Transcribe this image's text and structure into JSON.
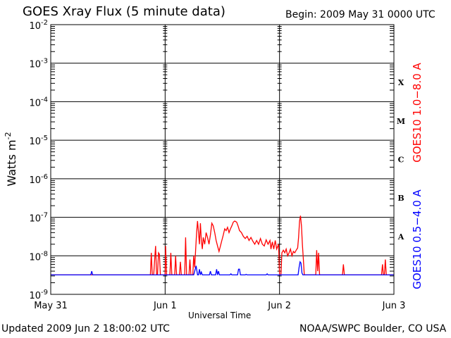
{
  "header": {
    "title": "GOES Xray Flux (5 minute data)",
    "begin": "Begin:  2009 May 31 0000 UTC"
  },
  "footer": {
    "updated": "Updated 2009 Jun  2 18:00:02 UTC",
    "credit": "NOAA/SWPC Boulder, CO USA"
  },
  "chart_data": {
    "type": "line",
    "title": "GOES Xray Flux (5 minute data)",
    "xlabel": "Universal Time",
    "ylabel": "Watts m-2",
    "yscale": "log",
    "ylim": [
      1e-09,
      0.01
    ],
    "xlim": [
      0,
      72
    ],
    "x_unit": "hours since 2009 May 31 0000 UTC",
    "x_ticks": [
      {
        "x": 0,
        "label": "May 31"
      },
      {
        "x": 24,
        "label": "Jun 1"
      },
      {
        "x": 48,
        "label": "Jun 2"
      },
      {
        "x": 72,
        "label": "Jun 3"
      }
    ],
    "y_ticks": [
      {
        "y": 1e-09,
        "base": "10",
        "exp": "-9"
      },
      {
        "y": 1e-08,
        "base": "10",
        "exp": "-8"
      },
      {
        "y": 1e-07,
        "base": "10",
        "exp": "-7"
      },
      {
        "y": 1e-06,
        "base": "10",
        "exp": "-6"
      },
      {
        "y": 1e-05,
        "base": "10",
        "exp": "-5"
      },
      {
        "y": 0.0001,
        "base": "10",
        "exp": "-4"
      },
      {
        "y": 0.001,
        "base": "10",
        "exp": "-3"
      },
      {
        "y": 0.01,
        "base": "10",
        "exp": "-2"
      }
    ],
    "flare_classes": [
      {
        "label": "A",
        "y_band": [
          1e-08,
          1e-07
        ]
      },
      {
        "label": "B",
        "y_band": [
          1e-07,
          1e-06
        ]
      },
      {
        "label": "C",
        "y_band": [
          1e-06,
          1e-05
        ]
      },
      {
        "label": "M",
        "y_band": [
          1e-05,
          0.0001
        ]
      },
      {
        "label": "X",
        "y_band": [
          0.0001,
          0.001
        ]
      }
    ],
    "grid": "horizontal lines at each decade",
    "series": [
      {
        "name": "GOES10 1.0-8.0 A",
        "color": "#ff0000",
        "points": [
          [
            0,
            3.2e-09
          ],
          [
            20.9,
            3.2e-09
          ],
          [
            21.1,
            1.2e-08
          ],
          [
            21.3,
            3.2e-09
          ],
          [
            21.6,
            3.2e-09
          ],
          [
            21.8,
            8e-09
          ],
          [
            22,
            1.8e-08
          ],
          [
            22.2,
            3.2e-09
          ],
          [
            22.4,
            3.2e-09
          ],
          [
            22.6,
            1.2e-08
          ],
          [
            22.8,
            1.1e-08
          ],
          [
            23,
            3.2e-09
          ],
          [
            24,
            3.2e-09
          ],
          [
            24.1,
            1.8e-08
          ],
          [
            24.3,
            3.2e-09
          ],
          [
            25,
            3.2e-09
          ],
          [
            25.2,
            1.2e-08
          ],
          [
            25.4,
            3.2e-09
          ],
          [
            26,
            3.2e-09
          ],
          [
            26.2,
            1e-08
          ],
          [
            26.4,
            3.2e-09
          ],
          [
            27,
            3.2e-09
          ],
          [
            27.2,
            7e-09
          ],
          [
            27.4,
            3.2e-09
          ],
          [
            28.1,
            3.2e-09
          ],
          [
            28.3,
            3e-08
          ],
          [
            28.5,
            3.2e-09
          ],
          [
            29,
            3.2e-09
          ],
          [
            29.2,
            8e-09
          ],
          [
            29.4,
            3.2e-09
          ],
          [
            29.8,
            3.2e-09
          ],
          [
            30,
            1e-08
          ],
          [
            30.2,
            5e-09
          ],
          [
            30.4,
            1.4e-08
          ],
          [
            30.6,
            4e-08
          ],
          [
            30.8,
            8e-08
          ],
          [
            31,
            4e-08
          ],
          [
            31.2,
            2e-08
          ],
          [
            31.4,
            7e-08
          ],
          [
            31.6,
            2.5e-08
          ],
          [
            31.8,
            1.5e-08
          ],
          [
            32,
            3e-08
          ],
          [
            32.3,
            2e-08
          ],
          [
            32.6,
            4e-08
          ],
          [
            32.9,
            3e-08
          ],
          [
            33.2,
            2e-08
          ],
          [
            33.5,
            3.5e-08
          ],
          [
            33.8,
            7e-08
          ],
          [
            34.1,
            6e-08
          ],
          [
            34.4,
            4e-08
          ],
          [
            34.7,
            2.5e-08
          ],
          [
            35,
            1.8e-08
          ],
          [
            35.3,
            1.3e-08
          ],
          [
            35.6,
            1.8e-08
          ],
          [
            35.9,
            2.5e-08
          ],
          [
            36.2,
            3.5e-08
          ],
          [
            36.5,
            5e-08
          ],
          [
            36.8,
            4.5e-08
          ],
          [
            37.1,
            5.5e-08
          ],
          [
            37.4,
            4e-08
          ],
          [
            37.7,
            5e-08
          ],
          [
            38,
            6e-08
          ],
          [
            38.3,
            7.5e-08
          ],
          [
            38.6,
            8e-08
          ],
          [
            39,
            7.5e-08
          ],
          [
            39.3,
            6e-08
          ],
          [
            39.6,
            4.5e-08
          ],
          [
            40,
            4e-08
          ],
          [
            40.4,
            3.2e-08
          ],
          [
            40.8,
            2.8e-08
          ],
          [
            41.2,
            3.2e-08
          ],
          [
            41.6,
            2.5e-08
          ],
          [
            42,
            3e-08
          ],
          [
            42.4,
            2.4e-08
          ],
          [
            42.8,
            2e-08
          ],
          [
            43.2,
            2.5e-08
          ],
          [
            43.6,
            2e-08
          ],
          [
            44,
            2.8e-08
          ],
          [
            44.4,
            2e-08
          ],
          [
            44.8,
            1.8e-08
          ],
          [
            45.2,
            2.6e-08
          ],
          [
            45.6,
            2e-08
          ],
          [
            46,
            2.5e-08
          ],
          [
            46.2,
            1.5e-08
          ],
          [
            46.5,
            2.3e-08
          ],
          [
            46.8,
            1.5e-08
          ],
          [
            47.1,
            2.5e-08
          ],
          [
            47.4,
            1.5e-08
          ],
          [
            47.8,
            2e-08
          ],
          [
            48,
            3.2e-09
          ],
          [
            48.3,
            3.2e-09
          ],
          [
            48.5,
            1.2e-08
          ],
          [
            48.8,
            1.4e-08
          ],
          [
            49.1,
            1.2e-08
          ],
          [
            49.4,
            1.5e-08
          ],
          [
            49.7,
            1e-08
          ],
          [
            50,
            1.2e-08
          ],
          [
            50.3,
            1.5e-08
          ],
          [
            50.6,
            1e-08
          ],
          [
            50.9,
            1.3e-08
          ],
          [
            51.2,
            1.2e-08
          ],
          [
            51.5,
            1.4e-08
          ],
          [
            51.8,
            1.6e-08
          ],
          [
            52,
            3e-08
          ],
          [
            52.2,
            8e-08
          ],
          [
            52.4,
            1.1e-07
          ],
          [
            52.6,
            6e-08
          ],
          [
            52.8,
            2e-08
          ],
          [
            53,
            8e-09
          ],
          [
            53.2,
            3.2e-09
          ],
          [
            55.6,
            3.2e-09
          ],
          [
            55.8,
            1.4e-08
          ],
          [
            56,
            4e-09
          ],
          [
            56.2,
            1.2e-08
          ],
          [
            56.4,
            3.2e-09
          ],
          [
            61.2,
            3.2e-09
          ],
          [
            61.4,
            6e-09
          ],
          [
            61.6,
            3.2e-09
          ],
          [
            69.4,
            3.2e-09
          ],
          [
            69.6,
            6e-09
          ],
          [
            69.8,
            3.2e-09
          ],
          [
            70,
            3.2e-09
          ],
          [
            70.2,
            8e-09
          ],
          [
            70.4,
            3.2e-09
          ],
          [
            72,
            3.2e-09
          ]
        ]
      },
      {
        "name": "GOES10 0.5-4.0 A",
        "color": "#0000ff",
        "points": [
          [
            0,
            3.2e-09
          ],
          [
            8.4,
            3.2e-09
          ],
          [
            8.6,
            4e-09
          ],
          [
            8.8,
            3.2e-09
          ],
          [
            30,
            3.2e-09
          ],
          [
            30.5,
            5.5e-09
          ],
          [
            30.8,
            3.2e-09
          ],
          [
            31,
            3.2e-09
          ],
          [
            31.2,
            4.5e-09
          ],
          [
            31.4,
            3.2e-09
          ],
          [
            31.6,
            3.8e-09
          ],
          [
            31.8,
            3.2e-09
          ],
          [
            33.3,
            3.2e-09
          ],
          [
            33.5,
            4e-09
          ],
          [
            33.7,
            3.2e-09
          ],
          [
            34.6,
            3.2e-09
          ],
          [
            34.8,
            4.5e-09
          ],
          [
            35,
            3.2e-09
          ],
          [
            35.2,
            4e-09
          ],
          [
            35.4,
            3.2e-09
          ],
          [
            37.6,
            3.2e-09
          ],
          [
            37.8,
            3.4e-09
          ],
          [
            38,
            3.2e-09
          ],
          [
            39.2,
            3.2e-09
          ],
          [
            39.4,
            4.5e-09
          ],
          [
            39.6,
            4.5e-09
          ],
          [
            39.8,
            3.2e-09
          ],
          [
            40.8,
            3.2e-09
          ],
          [
            41,
            3.3e-09
          ],
          [
            41.2,
            3.2e-09
          ],
          [
            45.2,
            3.2e-09
          ],
          [
            45.4,
            3.4e-09
          ],
          [
            45.6,
            3.2e-09
          ],
          [
            51.9,
            3.2e-09
          ],
          [
            52.1,
            5e-09
          ],
          [
            52.3,
            7e-09
          ],
          [
            52.5,
            6.5e-09
          ],
          [
            52.7,
            3.6e-09
          ],
          [
            52.9,
            3.2e-09
          ],
          [
            72,
            3.2e-09
          ]
        ]
      }
    ]
  }
}
